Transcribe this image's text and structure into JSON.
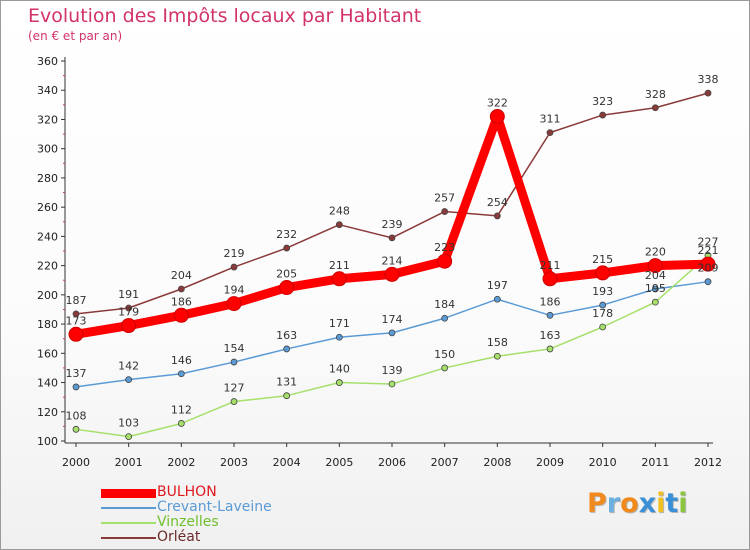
{
  "title": "Evolution des Impôts locaux par Habitant",
  "subtitle": "(en € et par an)",
  "brand": {
    "letters": [
      "P",
      "r",
      "o",
      "x",
      "i",
      "t",
      "i"
    ],
    "colors": [
      "#f08a1c",
      "#6ab0e0",
      "#f08a1c",
      "#3a8fd6",
      "#f0c020",
      "#3a8fd6",
      "#8cc63f"
    ]
  },
  "chart_data": {
    "type": "line",
    "title": "Evolution des Impôts locaux par Habitant",
    "subtitle": "(en € et par an)",
    "xlabel": "",
    "ylabel": "",
    "ylim": [
      100,
      360
    ],
    "yticks": [
      100,
      120,
      140,
      160,
      180,
      200,
      220,
      240,
      260,
      280,
      300,
      320,
      340,
      360
    ],
    "grid": false,
    "legend_position": "bottom-left",
    "categories": [
      "2000",
      "2001",
      "2002",
      "2003",
      "2004",
      "2005",
      "2006",
      "2007",
      "2008",
      "2009",
      "2010",
      "2011",
      "2012"
    ],
    "series": [
      {
        "name": "BULHON",
        "color": "#ff0000",
        "values": [
          173,
          179,
          186,
          194,
          205,
          211,
          214,
          223,
          322,
          211,
          215,
          220,
          221
        ],
        "labels": [
          "173",
          "179",
          "186",
          "194",
          "205",
          "211",
          "214",
          "223",
          "322",
          "211",
          "215",
          "220",
          "221"
        ]
      },
      {
        "name": "Crevant-Laveine",
        "color": "#5b9bd5",
        "values": [
          137,
          142,
          146,
          154,
          163,
          171,
          174,
          184,
          197,
          186,
          193,
          204,
          209
        ],
        "labels": [
          "137",
          "142",
          "146",
          "154",
          "163",
          "171",
          "174",
          "184",
          "197",
          "186",
          "193",
          "204",
          "209"
        ]
      },
      {
        "name": "Vinzelles",
        "color": "#a6e06b",
        "values": [
          108,
          103,
          112,
          127,
          131,
          140,
          139,
          150,
          158,
          163,
          178,
          195,
          227
        ],
        "labels": [
          "108",
          "103",
          "112",
          "127",
          "131",
          "140",
          "139",
          "150",
          "158",
          "163",
          "178",
          "195",
          "227"
        ]
      },
      {
        "name": "Orléat",
        "color": "#8b3a3a",
        "values": [
          187,
          191,
          204,
          219,
          232,
          248,
          239,
          257,
          254,
          311,
          323,
          328,
          338
        ],
        "labels": [
          "187",
          "191",
          "204",
          "219",
          "232",
          "248",
          "239",
          "257",
          "254",
          "311",
          "323",
          "328",
          "338"
        ]
      }
    ]
  }
}
